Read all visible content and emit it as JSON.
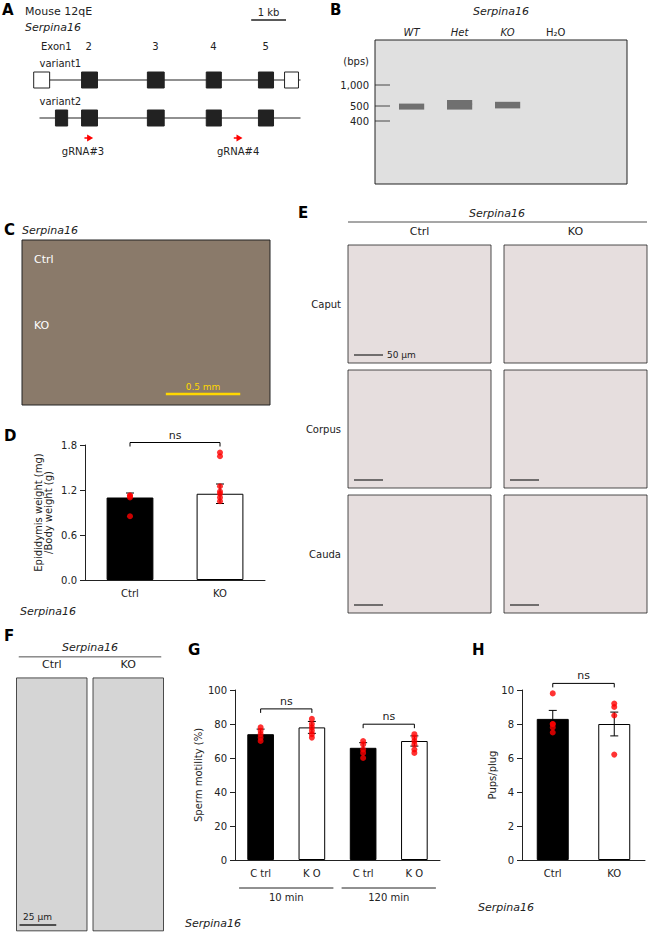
{
  "chart_data": [
    {
      "type": "diagram",
      "title": "A",
      "subtitle": "Mouse 12qE",
      "categories": [
        "Exon1",
        "2",
        "3",
        "4",
        "5"
      ],
      "series": [
        {
          "name": "variant1"
        },
        {
          "name": "variant2"
        }
      ],
      "annotations": [
        "Serpina16",
        "gRNA#3",
        "gRNA#4",
        "1 kb"
      ],
      "color": "red"
    },
    {
      "type": "gel",
      "title": "B",
      "subtitle": "Serpina16",
      "ylabel": "(bps)",
      "yticks": [
        400,
        500,
        {
          "value": 1000,
          "label": "1,000"
        }
      ],
      "categories": [
        "WT",
        "Het",
        "KO",
        "H₂O"
      ]
    },
    {
      "type": "image",
      "title": "C",
      "subtitle": "Serpina16",
      "categories": [
        "Ctrl",
        "KO"
      ],
      "annotations": [
        "0.5 mm"
      ],
      "color": "#FFD700"
    },
    {
      "type": "bar",
      "title": "D",
      "xlabel": "Serpina16",
      "ylabel": "Epididymis weight (mg)\n/Body weight (g)",
      "categories": [
        "Ctrl",
        "KO"
      ],
      "ylim": [
        0.0,
        1.8
      ],
      "yticks": [
        {
          "value": 0.0,
          "label": "0.0"
        },
        0.6,
        1.2,
        1.8
      ],
      "grid": false,
      "series": [
        {
          "type": "bar",
          "colors": [
            "black",
            "white"
          ],
          "color": "black",
          "values": [
            1.1,
            1.15
          ],
          "errors": [
            0.06,
            0.13
          ]
        },
        {
          "type": "scatter",
          "color": "#FF0000",
          "values": [
            [
              0.85,
              1.1,
              1.12,
              1.13
            ],
            [
              1.05,
              1.1,
              1.15,
              1.18,
              1.25,
              1.65,
              1.7
            ]
          ]
        }
      ],
      "annotations": [
        {
          "text": "ns",
          "between": [
            0,
            1
          ]
        }
      ]
    },
    {
      "type": "image",
      "title": "E",
      "subtitle": "Serpina16",
      "categories": [
        "Ctrl",
        "KO"
      ],
      "annotations": [
        "Caput",
        "Corpus",
        "Cauda",
        "50 μm"
      ]
    },
    {
      "type": "image",
      "title": "F",
      "subtitle": "Serpina16",
      "categories": [
        "Ctrl",
        "KO"
      ],
      "annotations": [
        "25 μm"
      ]
    },
    {
      "type": "bar",
      "title": "G",
      "xlabel": "Serpina16",
      "ylabel": "Sperm motility (%)",
      "categories": [
        "C trl",
        "K O",
        "C trl",
        "K O"
      ],
      "group_labels": [
        "10 min",
        "120 min"
      ],
      "ylim": [
        0,
        100
      ],
      "yticks": [
        0,
        20,
        40,
        60,
        80,
        100
      ],
      "grid": false,
      "series": [
        {
          "type": "bar",
          "colors": [
            "black",
            "white",
            "black",
            "white"
          ],
          "color": "black",
          "values": [
            74,
            78,
            66,
            70
          ],
          "errors": [
            3,
            3.5,
            3,
            3
          ]
        },
        {
          "type": "scatter",
          "color": "#FF0000",
          "values": [
            [
              70,
              72,
              74,
              76,
              78
            ],
            [
              72,
              74,
              76,
              78,
              80,
              83
            ],
            [
              60,
              63,
              65,
              68,
              70
            ],
            [
              63,
              65,
              68,
              70,
              72,
              74
            ]
          ]
        }
      ],
      "annotations": [
        {
          "text": "ns",
          "between": [
            0,
            1
          ]
        },
        {
          "text": "ns",
          "between": [
            2,
            3
          ]
        }
      ]
    },
    {
      "type": "bar",
      "title": "H",
      "xlabel": "Serpina16",
      "ylabel": "Pups/plug",
      "categories": [
        "Ctrl",
        "KO"
      ],
      "ylim": [
        0,
        10
      ],
      "yticks": [
        0,
        2,
        4,
        6,
        8,
        10
      ],
      "grid": false,
      "series": [
        {
          "type": "bar",
          "colors": [
            "black",
            "white"
          ],
          "color": "black",
          "values": [
            8.3,
            8.0
          ],
          "errors": [
            0.5,
            0.7
          ]
        },
        {
          "type": "scatter",
          "color": "#FF0000",
          "values": [
            [
              7.5,
              7.8,
              8.0,
              8.0,
              9.8
            ],
            [
              6.2,
              8.5,
              9.0,
              9.2
            ]
          ]
        }
      ],
      "annotations": [
        {
          "text": "ns",
          "between": [
            0,
            1
          ]
        }
      ]
    }
  ]
}
